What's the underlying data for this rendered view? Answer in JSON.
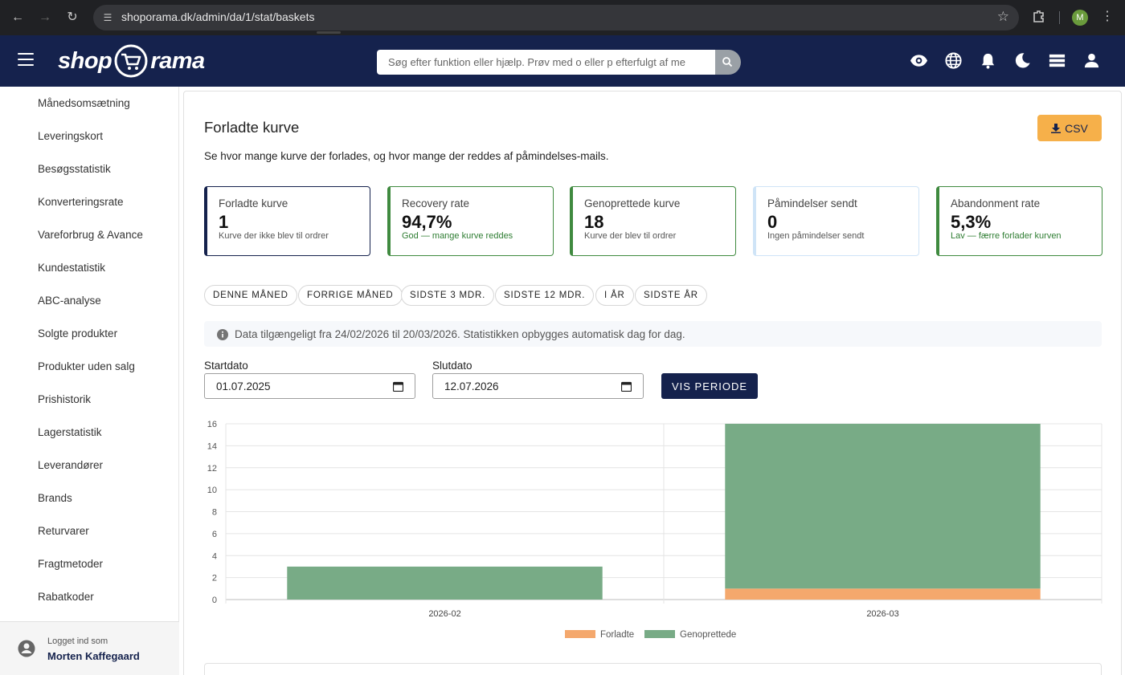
{
  "browser": {
    "url": "shoporama.dk/admin/da/1/stat/baskets",
    "profile_initial": "M"
  },
  "header": {
    "logo_left": "shop",
    "logo_right": "rama",
    "search_placeholder": "Søg efter funktion eller hjælp. Prøv med o eller p efterfulgt af me",
    "icons": [
      "eye-icon",
      "globe-icon",
      "bell-icon",
      "moon-icon",
      "stack-icon",
      "user-icon"
    ]
  },
  "sidebar": {
    "items": [
      "Månedsomsætning",
      "Leveringskort",
      "Besøgsstatistik",
      "Konverteringsrate",
      "Vareforbrug & Avance",
      "Kundestatistik",
      "ABC-analyse",
      "Solgte produkter",
      "Produkter uden salg",
      "Prishistorik",
      "Lagerstatistik",
      "Leverandører",
      "Brands",
      "Returvarer",
      "Fragtmetoder",
      "Rabatkoder"
    ],
    "footer": {
      "label": "Logget ind som",
      "user": "Morten Kaffegaard"
    }
  },
  "main": {
    "title": "Forladte kurve",
    "csv_label": "CSV",
    "subtitle": "Se hvor mange kurve der forlades, og hvor mange der reddes af påmindelses-mails.",
    "stats": [
      {
        "label": "Forladte kurve",
        "value": "1",
        "sub": "Kurve der ikke blev til ordrer",
        "color": "#15224d",
        "sub_good": false
      },
      {
        "label": "Recovery rate",
        "value": "94,7%",
        "sub": "God — mange kurve reddes",
        "color": "#3f8a3f",
        "sub_good": true
      },
      {
        "label": "Genoprettede kurve",
        "value": "18",
        "sub": "Kurve der blev til ordrer",
        "color": "#3f8a3f",
        "sub_good": false
      },
      {
        "label": "Påmindelser sendt",
        "value": "0",
        "sub": "Ingen påmindelser sendt",
        "color": "#cfe4f7",
        "sub_good": false
      },
      {
        "label": "Abandonment rate",
        "value": "5,3%",
        "sub": "Lav — færre forlader kurven",
        "color": "#3f8a3f",
        "sub_good": true
      }
    ],
    "periods": [
      "DENNE MÅNED",
      "FORRIGE MÅNED",
      "SIDSTE 3 MDR.",
      "SIDSTE 12 MDR.",
      "I ÅR",
      "SIDSTE ÅR"
    ],
    "info": "Data tilgængeligt fra 24/02/2026 til 20/03/2026. Statistikken opbygges automatisk dag for dag.",
    "start_label": "Startdato",
    "start_value": "01.07.2025",
    "end_label": "Slutdato",
    "end_value": "12.07.2026",
    "show_button": "VIS PERIODE"
  },
  "chart_data": {
    "type": "bar",
    "stacked": true,
    "categories": [
      "2026-02",
      "2026-03"
    ],
    "series": [
      {
        "name": "Forladte",
        "values": [
          0,
          1
        ],
        "color": "#f4a86d"
      },
      {
        "name": "Genoprettede",
        "values": [
          3,
          15
        ],
        "color": "#78ab86"
      }
    ],
    "ylim": [
      0,
      16
    ],
    "yticks": [
      0,
      2,
      4,
      6,
      8,
      10,
      12,
      14,
      16
    ],
    "grid": true,
    "legend": "bottom"
  }
}
